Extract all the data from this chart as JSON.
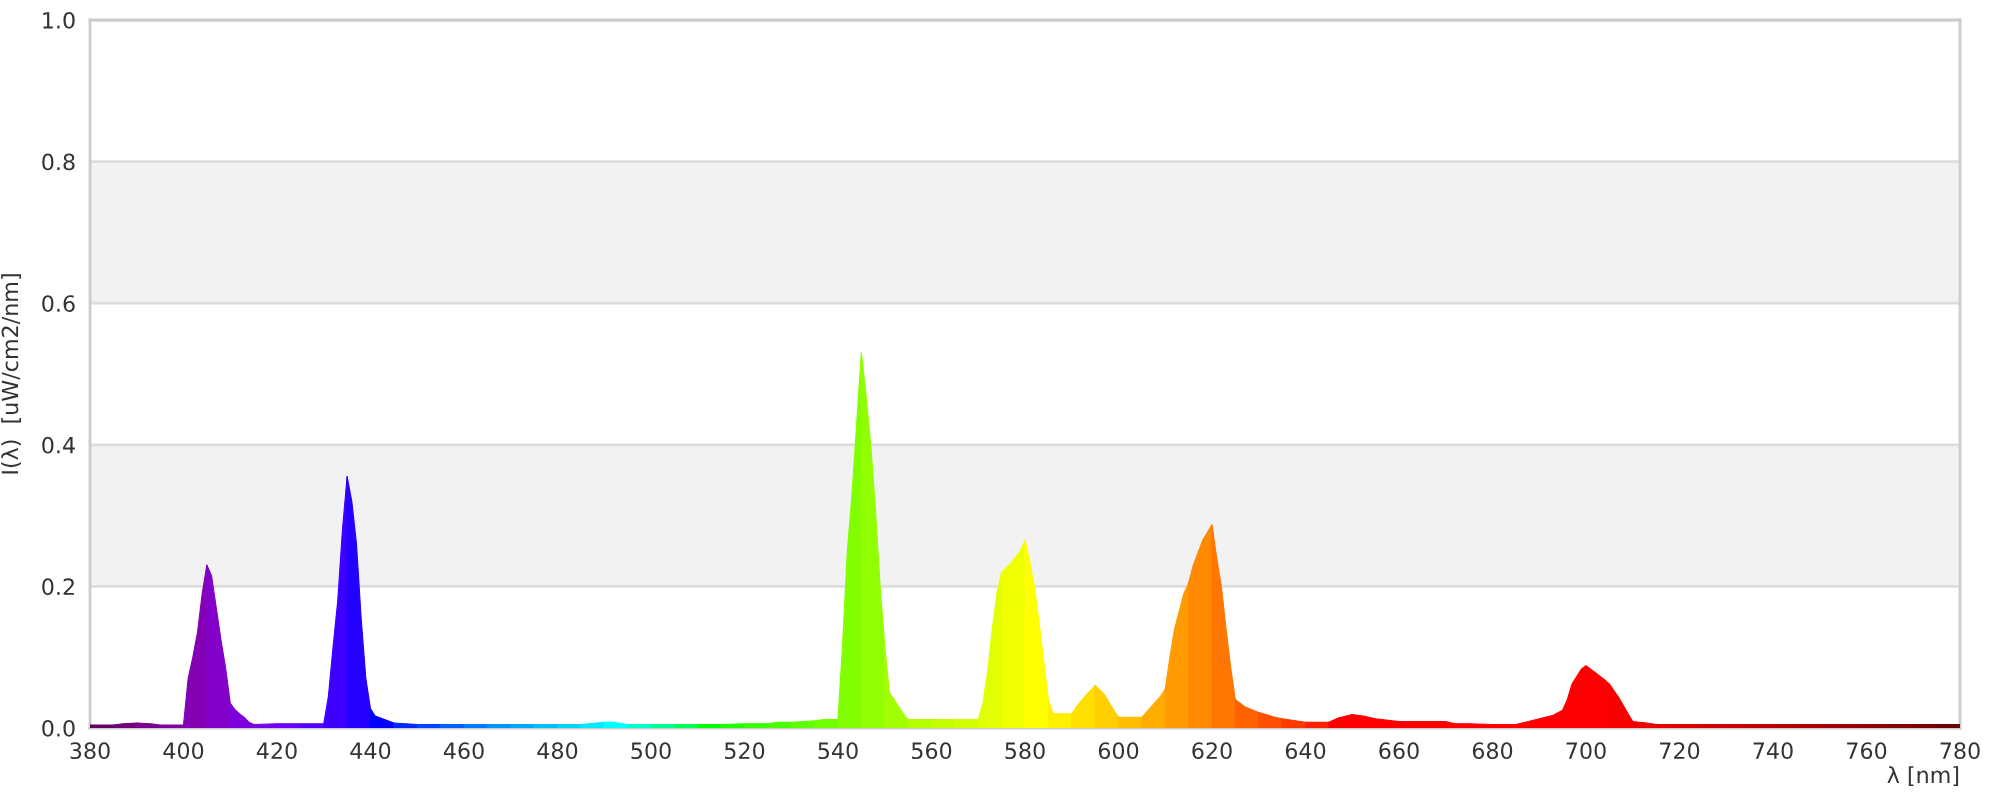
{
  "chart_data": {
    "type": "area",
    "xlabel": "λ [nm]",
    "ylabel": "I(λ)  [uW/cm2/nm]",
    "series": [
      {
        "color": "#610061",
        "x": [
          380,
          385
        ],
        "values": [
          0.004,
          0.004
        ]
      },
      {
        "color": "#6f0077",
        "x": [
          385,
          387,
          390
        ],
        "values": [
          0.004,
          0.006,
          0.007
        ]
      },
      {
        "color": "#79008d",
        "x": [
          390,
          393,
          395
        ],
        "values": [
          0.007,
          0.006,
          0.004
        ]
      },
      {
        "color": "#8000a1",
        "x": [
          395,
          400
        ],
        "values": [
          0.004,
          0.004
        ]
      },
      {
        "color": "#8300b5",
        "x": [
          400,
          401,
          402,
          403,
          404,
          405
        ],
        "values": [
          0.004,
          0.07,
          0.1,
          0.135,
          0.19,
          0.23
        ]
      },
      {
        "color": "#8200c8",
        "x": [
          405,
          406,
          407,
          408,
          409,
          410
        ],
        "values": [
          0.23,
          0.215,
          0.17,
          0.125,
          0.085,
          0.035
        ]
      },
      {
        "color": "#7e00db",
        "x": [
          410,
          411,
          412,
          413,
          414,
          415
        ],
        "values": [
          0.035,
          0.026,
          0.02,
          0.015,
          0.008,
          0.005
        ]
      },
      {
        "color": "#7600ed",
        "x": [
          415,
          420
        ],
        "values": [
          0.005,
          0.006
        ]
      },
      {
        "color": "#6a00ff",
        "x": [
          420,
          425
        ],
        "values": [
          0.006,
          0.006
        ]
      },
      {
        "color": "#5400ff",
        "x": [
          425,
          430
        ],
        "values": [
          0.006,
          0.006
        ]
      },
      {
        "color": "#3d00ff",
        "x": [
          430,
          431,
          432,
          433,
          434,
          435
        ],
        "values": [
          0.006,
          0.045,
          0.115,
          0.18,
          0.28,
          0.355
        ]
      },
      {
        "color": "#2300ff",
        "x": [
          435,
          436,
          437,
          438,
          439,
          440
        ],
        "values": [
          0.355,
          0.32,
          0.26,
          0.155,
          0.07,
          0.027
        ]
      },
      {
        "color": "#0000ff",
        "x": [
          440,
          441,
          443,
          445
        ],
        "values": [
          0.027,
          0.017,
          0.012,
          0.007
        ]
      },
      {
        "color": "#0028ff",
        "x": [
          445,
          450
        ],
        "values": [
          0.007,
          0.005
        ]
      },
      {
        "color": "#0046ff",
        "x": [
          450,
          455
        ],
        "values": [
          0.005,
          0.005
        ]
      },
      {
        "color": "#0061ff",
        "x": [
          455,
          460
        ],
        "values": [
          0.005,
          0.005
        ]
      },
      {
        "color": "#007bff",
        "x": [
          460,
          465
        ],
        "values": [
          0.005,
          0.005
        ]
      },
      {
        "color": "#0092ff",
        "x": [
          465,
          470
        ],
        "values": [
          0.005,
          0.005
        ]
      },
      {
        "color": "#00a9ff",
        "x": [
          470,
          475
        ],
        "values": [
          0.005,
          0.005
        ]
      },
      {
        "color": "#00c0ff",
        "x": [
          475,
          480
        ],
        "values": [
          0.005,
          0.005
        ]
      },
      {
        "color": "#00d5ff",
        "x": [
          480,
          485
        ],
        "values": [
          0.005,
          0.005
        ]
      },
      {
        "color": "#00eaff",
        "x": [
          485,
          490
        ],
        "values": [
          0.005,
          0.008
        ]
      },
      {
        "color": "#00ffff",
        "x": [
          490,
          492,
          495
        ],
        "values": [
          0.008,
          0.008,
          0.005
        ]
      },
      {
        "color": "#00ffcb",
        "x": [
          495,
          500
        ],
        "values": [
          0.005,
          0.005
        ]
      },
      {
        "color": "#00ff92",
        "x": [
          500,
          505
        ],
        "values": [
          0.005,
          0.005
        ]
      },
      {
        "color": "#00ff54",
        "x": [
          505,
          510
        ],
        "values": [
          0.005,
          0.005
        ]
      },
      {
        "color": "#00ff00",
        "x": [
          510,
          515
        ],
        "values": [
          0.005,
          0.005
        ]
      },
      {
        "color": "#1fff00",
        "x": [
          515,
          520
        ],
        "values": [
          0.005,
          0.006
        ]
      },
      {
        "color": "#36ff00",
        "x": [
          520,
          525
        ],
        "values": [
          0.006,
          0.006
        ]
      },
      {
        "color": "#4aff00",
        "x": [
          525,
          527,
          530
        ],
        "values": [
          0.006,
          0.008,
          0.008
        ]
      },
      {
        "color": "#5eff00",
        "x": [
          530,
          535
        ],
        "values": [
          0.008,
          0.01
        ]
      },
      {
        "color": "#70ff00",
        "x": [
          535,
          537,
          540
        ],
        "values": [
          0.01,
          0.012,
          0.012
        ]
      },
      {
        "color": "#81ff00",
        "x": [
          540,
          541,
          542,
          543,
          544,
          545
        ],
        "values": [
          0.012,
          0.12,
          0.25,
          0.33,
          0.43,
          0.53
        ]
      },
      {
        "color": "#92ff00",
        "x": [
          545,
          546,
          547,
          548,
          549,
          550
        ],
        "values": [
          0.53,
          0.47,
          0.4,
          0.31,
          0.2,
          0.115
        ]
      },
      {
        "color": "#a3ff00",
        "x": [
          550,
          551,
          552,
          553,
          554,
          555
        ],
        "values": [
          0.115,
          0.05,
          0.04,
          0.03,
          0.02,
          0.012
        ]
      },
      {
        "color": "#b3ff00",
        "x": [
          555,
          560
        ],
        "values": [
          0.012,
          0.012
        ]
      },
      {
        "color": "#c3ff00",
        "x": [
          560,
          565
        ],
        "values": [
          0.012,
          0.012
        ]
      },
      {
        "color": "#d2ff00",
        "x": [
          565,
          570
        ],
        "values": [
          0.012,
          0.012
        ]
      },
      {
        "color": "#e1ff00",
        "x": [
          570,
          571,
          572,
          573,
          574,
          575
        ],
        "values": [
          0.012,
          0.035,
          0.08,
          0.14,
          0.19,
          0.22
        ]
      },
      {
        "color": "#f0ff00",
        "x": [
          575,
          577,
          579,
          580
        ],
        "values": [
          0.22,
          0.233,
          0.25,
          0.265
        ]
      },
      {
        "color": "#ffff00",
        "x": [
          580,
          581,
          582,
          583,
          584,
          585
        ],
        "values": [
          0.265,
          0.235,
          0.2,
          0.15,
          0.095,
          0.04
        ]
      },
      {
        "color": "#ffef00",
        "x": [
          585,
          586,
          590
        ],
        "values": [
          0.04,
          0.02,
          0.02
        ]
      },
      {
        "color": "#ffdf00",
        "x": [
          590,
          591,
          593,
          595
        ],
        "values": [
          0.02,
          0.03,
          0.046,
          0.06
        ]
      },
      {
        "color": "#ffcf00",
        "x": [
          595,
          597,
          599,
          600
        ],
        "values": [
          0.06,
          0.047,
          0.025,
          0.015
        ]
      },
      {
        "color": "#ffbe00",
        "x": [
          600,
          605
        ],
        "values": [
          0.015,
          0.015
        ]
      },
      {
        "color": "#ffad00",
        "x": [
          605,
          607,
          609,
          610
        ],
        "values": [
          0.015,
          0.03,
          0.045,
          0.055
        ]
      },
      {
        "color": "#ff9b00",
        "x": [
          610,
          611,
          612,
          614,
          615
        ],
        "values": [
          0.055,
          0.1,
          0.14,
          0.19,
          0.205
        ]
      },
      {
        "color": "#ff8900",
        "x": [
          615,
          616,
          618,
          620
        ],
        "values": [
          0.205,
          0.23,
          0.265,
          0.287
        ]
      },
      {
        "color": "#ff7700",
        "x": [
          620,
          621,
          622,
          623,
          624,
          625
        ],
        "values": [
          0.287,
          0.24,
          0.2,
          0.14,
          0.085,
          0.04
        ]
      },
      {
        "color": "#ff6300",
        "x": [
          625,
          627,
          630
        ],
        "values": [
          0.04,
          0.03,
          0.022
        ]
      },
      {
        "color": "#ff4f00",
        "x": [
          630,
          633,
          635
        ],
        "values": [
          0.022,
          0.016,
          0.013
        ]
      },
      {
        "color": "#ff3900",
        "x": [
          635,
          640
        ],
        "values": [
          0.013,
          0.008
        ]
      },
      {
        "color": "#ff2100",
        "x": [
          640,
          645
        ],
        "values": [
          0.008,
          0.008
        ]
      },
      {
        "color": "#ff0000",
        "x": [
          645,
          647,
          650,
          653,
          655,
          660,
          665,
          670,
          672,
          675,
          680,
          685,
          687,
          690,
          693,
          695,
          696,
          697,
          699,
          700,
          702,
          704,
          705
        ],
        "values": [
          0.008,
          0.014,
          0.019,
          0.016,
          0.013,
          0.009,
          0.009,
          0.009,
          0.006,
          0.006,
          0.005,
          0.005,
          0.008,
          0.013,
          0.018,
          0.025,
          0.04,
          0.062,
          0.083,
          0.088,
          0.078,
          0.068,
          0.062
        ]
      },
      {
        "color": "#f60000",
        "x": [
          705,
          707,
          709,
          710
        ],
        "values": [
          0.062,
          0.043,
          0.02,
          0.009
        ]
      },
      {
        "color": "#ed0000",
        "x": [
          710,
          713,
          715
        ],
        "values": [
          0.009,
          0.007,
          0.005
        ]
      },
      {
        "color": "#e40000",
        "x": [
          715,
          720
        ],
        "values": [
          0.005,
          0.005
        ]
      },
      {
        "color": "#db0000",
        "x": [
          720,
          725
        ],
        "values": [
          0.005,
          0.005
        ]
      },
      {
        "color": "#d10000",
        "x": [
          725,
          730
        ],
        "values": [
          0.005,
          0.005
        ]
      },
      {
        "color": "#c80000",
        "x": [
          730,
          735
        ],
        "values": [
          0.005,
          0.005
        ]
      },
      {
        "color": "#be0000",
        "x": [
          735,
          740
        ],
        "values": [
          0.005,
          0.005
        ]
      },
      {
        "color": "#b50000",
        "x": [
          740,
          745
        ],
        "values": [
          0.005,
          0.005
        ]
      },
      {
        "color": "#ab0000",
        "x": [
          745,
          750
        ],
        "values": [
          0.005,
          0.005
        ]
      },
      {
        "color": "#a10000",
        "x": [
          750,
          755
        ],
        "values": [
          0.005,
          0.005
        ]
      },
      {
        "color": "#970000",
        "x": [
          755,
          760
        ],
        "values": [
          0.005,
          0.005
        ]
      },
      {
        "color": "#8d0000",
        "x": [
          760,
          765
        ],
        "values": [
          0.005,
          0.005
        ]
      },
      {
        "color": "#820000",
        "x": [
          765,
          770
        ],
        "values": [
          0.005,
          0.005
        ]
      },
      {
        "color": "#770000",
        "x": [
          770,
          775
        ],
        "values": [
          0.005,
          0.005
        ]
      },
      {
        "color": "#6d0000",
        "x": [
          775,
          780
        ],
        "values": [
          0.005,
          0.005
        ]
      }
    ],
    "xlim": [
      380,
      780
    ],
    "xticks": [
      380,
      400,
      420,
      440,
      460,
      480,
      500,
      520,
      540,
      560,
      580,
      600,
      620,
      640,
      660,
      680,
      700,
      720,
      740,
      760,
      780
    ],
    "ylim": [
      0,
      1
    ],
    "yticks": [
      {
        "value": 0,
        "label": "0.0"
      },
      0.2,
      0.4,
      0.6,
      0.8,
      {
        "value": 1,
        "label": "1.0"
      }
    ],
    "grid": "y",
    "bands": [
      {
        "axis": "y",
        "from": 0.2,
        "to": 0.4,
        "color": "#f2f2f2"
      },
      {
        "axis": "y",
        "from": 0.6,
        "to": 0.8,
        "color": "#f2f2f2"
      }
    ]
  }
}
